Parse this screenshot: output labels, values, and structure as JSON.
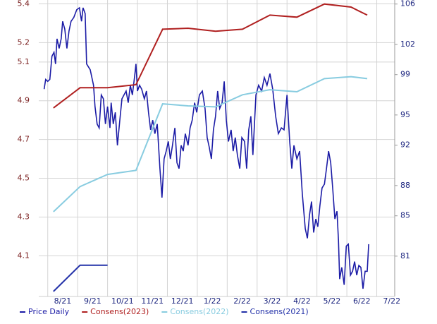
{
  "chart_data": {
    "type": "line",
    "xlim": [
      -0.3,
      11.6
    ],
    "xticks": [
      {
        "value": 0,
        "label": "8/21"
      },
      {
        "value": 1,
        "label": "9/21"
      },
      {
        "value": 2,
        "label": "10/21"
      },
      {
        "value": 3,
        "label": "11/21"
      },
      {
        "value": 4,
        "label": "12/21"
      },
      {
        "value": 5,
        "label": "1/22"
      },
      {
        "value": 6,
        "label": "2/22"
      },
      {
        "value": 7,
        "label": "3/22"
      },
      {
        "value": 8,
        "label": "4/22"
      },
      {
        "value": 9,
        "label": "5/22"
      },
      {
        "value": 10,
        "label": "6/22"
      },
      {
        "value": 11,
        "label": "7/22"
      }
    ],
    "ylim": [
      3.89,
      5.42
    ],
    "yticks": [
      4.1,
      4.3,
      4.5,
      4.7,
      4.9,
      5.1,
      5.2,
      5.4
    ],
    "y2lim": [
      77,
      106.4
    ],
    "y2ticks": [
      81,
      85,
      88,
      92,
      95,
      99,
      102,
      106
    ],
    "grid": true,
    "legend": "bottom",
    "series": [
      {
        "name": "Price Daily",
        "color": "#1c1ca6",
        "x": [
          -0.12,
          -0.07,
          0,
          0.07,
          0.14,
          0.21,
          0.26,
          0.31,
          0.38,
          0.45,
          0.5,
          0.57,
          0.64,
          0.71,
          0.78,
          0.87,
          0.97,
          1.06,
          1.13,
          1.18,
          1.25,
          1.3,
          1.42,
          1.53,
          1.58,
          1.65,
          1.72,
          1.79,
          1.86,
          1.93,
          2,
          2.08,
          2.12,
          2.19,
          2.26,
          2.33,
          2.41,
          2.48,
          2.55,
          2.62,
          2.69,
          2.76,
          2.83,
          2.9,
          2.95,
          3,
          3.07,
          3.14,
          3.23,
          3.3,
          3.37,
          3.44,
          3.51,
          3.58,
          3.66,
          3.75,
          3.82,
          3.89,
          3.96,
          4.03,
          4.1,
          4.17,
          4.25,
          4.32,
          4.39,
          4.46,
          4.53,
          4.6,
          4.69,
          4.76,
          4.83,
          4.91,
          4.98,
          5.07,
          5.17,
          5.26,
          5.33,
          5.4,
          5.47,
          5.54,
          5.61,
          5.68,
          5.75,
          5.83,
          5.9,
          5.97,
          6.04,
          6.13,
          6.2,
          6.27,
          6.34,
          6.42,
          6.49,
          6.58,
          6.65,
          6.72,
          6.79,
          6.86,
          6.96,
          7.05,
          7.15,
          7.24,
          7.33,
          7.43,
          7.52,
          7.62,
          7.71,
          7.81,
          7.9,
          8,
          8.09,
          8.16,
          8.23,
          8.33,
          8.42,
          8.51,
          8.61,
          8.68,
          8.75,
          8.82,
          8.89,
          8.96,
          9.03,
          9.1,
          9.17,
          9.25,
          9.32,
          9.39,
          9.46,
          9.53,
          9.6,
          9.67,
          9.72,
          9.76,
          9.83,
          9.91,
          9.98,
          10.05,
          10.12,
          10.19,
          10.26,
          10.33,
          10.4,
          10.47,
          10.54,
          10.61,
          10.68,
          10.73
        ],
        "values": [
          4.96,
          5.01,
          5,
          5.01,
          5.13,
          5.15,
          5.09,
          5.22,
          5.17,
          5.22,
          5.31,
          5.27,
          5.17,
          5.26,
          5.31,
          5.33,
          5.37,
          5.38,
          5.31,
          5.38,
          5.35,
          5.09,
          5.06,
          4.98,
          4.87,
          4.78,
          4.76,
          4.93,
          4.91,
          4.78,
          4.87,
          4.76,
          4.89,
          4.78,
          4.84,
          4.67,
          4.8,
          4.91,
          4.93,
          4.95,
          4.89,
          4.98,
          4.93,
          5.02,
          5.09,
          4.95,
          4.98,
          4.96,
          4.91,
          4.95,
          4.84,
          4.75,
          4.8,
          4.73,
          4.78,
          4.55,
          4.4,
          4.6,
          4.64,
          4.69,
          4.6,
          4.67,
          4.76,
          4.58,
          4.55,
          4.67,
          4.64,
          4.73,
          4.67,
          4.76,
          4.8,
          4.89,
          4.84,
          4.93,
          4.95,
          4.86,
          4.71,
          4.66,
          4.6,
          4.75,
          4.82,
          4.95,
          4.86,
          4.89,
          5,
          4.8,
          4.69,
          4.75,
          4.64,
          4.71,
          4.62,
          4.55,
          4.71,
          4.69,
          4.55,
          4.75,
          4.82,
          4.62,
          4.93,
          4.98,
          4.95,
          5.02,
          4.98,
          5.04,
          4.96,
          4.82,
          4.73,
          4.76,
          4.75,
          4.93,
          4.69,
          4.55,
          4.67,
          4.6,
          4.64,
          4.42,
          4.24,
          4.19,
          4.31,
          4.38,
          4.22,
          4.29,
          4.25,
          4.36,
          4.45,
          4.47,
          4.55,
          4.64,
          4.58,
          4.44,
          4.29,
          4.33,
          4.18,
          3.98,
          4.04,
          3.95,
          4.15,
          4.16,
          4,
          4.02,
          4.07,
          4,
          4.05,
          4.04,
          3.93,
          4.02,
          4.02,
          4.16
        ]
      },
      {
        "name": "Consens(2023)",
        "color": "#b02020",
        "axis": "y2",
        "x": [
          0.19,
          1.08,
          2,
          2.95,
          3.84,
          4.69,
          5.61,
          6.51,
          7.43,
          8.33,
          9.25,
          10.14,
          10.68
        ],
        "values": [
          95.7,
          97.7,
          97.7,
          98,
          103.5,
          103.6,
          103.3,
          103.5,
          104.9,
          104.7,
          106,
          105.7,
          104.9
        ]
      },
      {
        "name": "Consens(2022)",
        "color": "#88cce0",
        "axis": "y2",
        "x": [
          0.19,
          1.08,
          2,
          2.95,
          3.84,
          4.69,
          5.61,
          6.51,
          7.43,
          8.33,
          9.25,
          10.14,
          10.68
        ],
        "values": [
          85.4,
          87.9,
          89.1,
          89.5,
          96.1,
          95.9,
          95.8,
          97,
          97.5,
          97.3,
          98.6,
          98.8,
          98.6
        ]
      },
      {
        "name": "Consens(2021)",
        "color": "#2230a8",
        "axis": "y2",
        "x": [
          0.19,
          1.08,
          2
        ],
        "values": [
          77.5,
          80.1,
          80.1
        ]
      }
    ]
  }
}
